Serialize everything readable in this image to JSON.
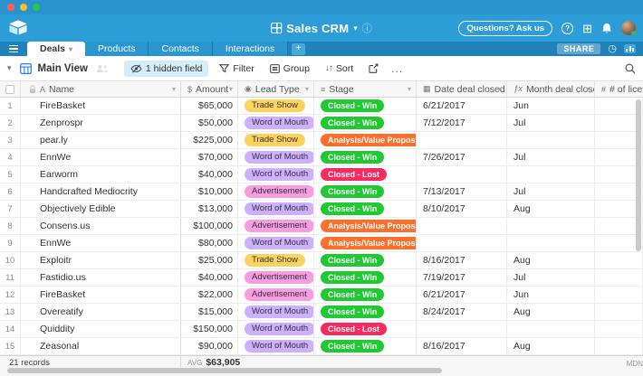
{
  "app": {
    "title": "Sales CRM"
  },
  "topbar": {
    "questions_label": "Questions? Ask us"
  },
  "tabs": {
    "items": [
      "Deals",
      "Products",
      "Contacts",
      "Interactions"
    ],
    "active": "Deals",
    "share_label": "SHARE"
  },
  "toolbar": {
    "view_name": "Main View",
    "hidden_chip": "1 hidden field",
    "filter_label": "Filter",
    "group_label": "Group",
    "sort_label": "Sort",
    "more_label": "..."
  },
  "table": {
    "columns": [
      {
        "label": "Name",
        "icon": "text"
      },
      {
        "label": "Amount",
        "icon": "currency"
      },
      {
        "label": "Lead Type",
        "icon": "select"
      },
      {
        "label": "Stage",
        "icon": "status"
      },
      {
        "label": "Date deal closed",
        "icon": "calendar"
      },
      {
        "label": "Month deal closed",
        "icon": "formula"
      },
      {
        "label": "# of licens",
        "icon": "number"
      }
    ],
    "rows": [
      {
        "num": 1,
        "name": "FireBasket",
        "amount": "$65,000",
        "lead": "Trade Show",
        "stage": "Closed - Win",
        "date": "6/21/2017",
        "month": "Jun"
      },
      {
        "num": 2,
        "name": "Zenprospr",
        "amount": "$50,000",
        "lead": "Word of Mouth",
        "stage": "Closed - Win",
        "date": "7/12/2017",
        "month": "Jul"
      },
      {
        "num": 3,
        "name": "pear.ly",
        "amount": "$225,000",
        "lead": "Trade Show",
        "stage": "Analysis/Value Proposition",
        "date": "",
        "month": ""
      },
      {
        "num": 4,
        "name": "EnnWe",
        "amount": "$70,000",
        "lead": "Word of Mouth",
        "stage": "Closed - Win",
        "date": "7/26/2017",
        "month": "Jul"
      },
      {
        "num": 5,
        "name": "Earworm",
        "amount": "$40,000",
        "lead": "Word of Mouth",
        "stage": "Closed - Lost",
        "date": "",
        "month": ""
      },
      {
        "num": 6,
        "name": "Handcrafted Mediocrity",
        "amount": "$10,000",
        "lead": "Advertisement",
        "stage": "Closed - Win",
        "date": "7/13/2017",
        "month": "Jul"
      },
      {
        "num": 7,
        "name": "Objectively Edible",
        "amount": "$13,000",
        "lead": "Word of Mouth",
        "stage": "Closed - Win",
        "date": "8/10/2017",
        "month": "Aug"
      },
      {
        "num": 8,
        "name": "Consens.us",
        "amount": "$100,000",
        "lead": "Advertisement",
        "stage": "Analysis/Value Proposition",
        "date": "",
        "month": ""
      },
      {
        "num": 9,
        "name": "EnnWe",
        "amount": "$80,000",
        "lead": "Word of Mouth",
        "stage": "Analysis/Value Proposition",
        "date": "",
        "month": ""
      },
      {
        "num": 10,
        "name": "Exploitr",
        "amount": "$25,000",
        "lead": "Trade Show",
        "stage": "Closed - Win",
        "date": "8/16/2017",
        "month": "Aug"
      },
      {
        "num": 11,
        "name": "Fastidio.us",
        "amount": "$40,000",
        "lead": "Advertisement",
        "stage": "Closed - Win",
        "date": "7/19/2017",
        "month": "Jul"
      },
      {
        "num": 12,
        "name": "FireBasket",
        "amount": "$22,000",
        "lead": "Advertisement",
        "stage": "Closed - Win",
        "date": "6/21/2017",
        "month": "Jun"
      },
      {
        "num": 13,
        "name": "Overeatify",
        "amount": "$15,000",
        "lead": "Word of Mouth",
        "stage": "Closed - Win",
        "date": "8/24/2017",
        "month": "Aug"
      },
      {
        "num": 14,
        "name": "Quiddity",
        "amount": "$150,000",
        "lead": "Word of Mouth",
        "stage": "Closed - Lost",
        "date": "",
        "month": ""
      },
      {
        "num": 15,
        "name": "Zeasonal",
        "amount": "$90,000",
        "lead": "Word of Mouth",
        "stage": "Closed - Win",
        "date": "8/16/2017",
        "month": "Aug"
      }
    ]
  },
  "colors": {
    "lead_types": {
      "Trade Show": "#fcd35e",
      "Word of Mouth": "#cdb0ff",
      "Advertisement": "#f99de2"
    },
    "stages": {
      "Closed - Win": "#20c933",
      "Closed - Lost": "#f82b60",
      "Analysis/Value Proposition": "#ff6f2c"
    }
  },
  "footer": {
    "records": "21 records",
    "avg_label": "AVG",
    "avg_value": "$63,905",
    "mdn_label": "MDN"
  }
}
